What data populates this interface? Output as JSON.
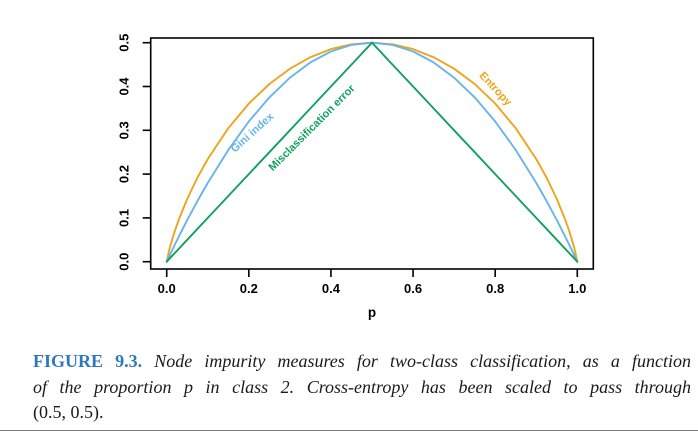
{
  "chart_data": {
    "type": "line",
    "title": "",
    "xlabel": "p",
    "ylabel": "",
    "xlim": [
      0,
      1
    ],
    "ylim": [
      0,
      0.5
    ],
    "grid": false,
    "legend": "labels drawn along curves",
    "x_ticks": {
      "values": [
        0.0,
        0.2,
        0.4,
        0.6,
        0.8,
        1.0
      ],
      "labels": [
        "0.0",
        "0.2",
        "0.4",
        "0.6",
        "0.8",
        "1.0"
      ]
    },
    "y_ticks": {
      "values": [
        0.0,
        0.1,
        0.2,
        0.3,
        0.4,
        0.5
      ],
      "labels": [
        "0.0",
        "0.1",
        "0.2",
        "0.3",
        "0.4",
        "0.5"
      ]
    },
    "x": [
      0,
      0.005,
      0.01,
      0.02,
      0.03,
      0.05,
      0.075,
      0.1,
      0.15,
      0.2,
      0.25,
      0.3,
      0.35,
      0.4,
      0.45,
      0.5,
      0.55,
      0.6,
      0.65,
      0.7,
      0.75,
      0.8,
      0.85,
      0.9,
      0.925,
      0.95,
      0.97,
      0.98,
      0.99,
      0.995,
      1.0
    ],
    "series": [
      {
        "id": "entropy",
        "name": "Entropy",
        "color": "#EDA51E",
        "values": [
          0,
          0.0227,
          0.0404,
          0.0707,
          0.0972,
          0.1432,
          0.1922,
          0.2345,
          0.3049,
          0.361,
          0.4056,
          0.4406,
          0.467,
          0.4855,
          0.4964,
          0.5,
          0.4964,
          0.4855,
          0.467,
          0.4406,
          0.4056,
          0.361,
          0.3049,
          0.2345,
          0.1922,
          0.1432,
          0.0972,
          0.0707,
          0.0404,
          0.0227,
          0
        ]
      },
      {
        "id": "gini",
        "name": "Gini index",
        "color": "#67B5E9",
        "values": [
          0,
          0.00995,
          0.0198,
          0.0392,
          0.0582,
          0.095,
          0.1388,
          0.18,
          0.255,
          0.32,
          0.375,
          0.42,
          0.455,
          0.48,
          0.495,
          0.5,
          0.495,
          0.48,
          0.455,
          0.42,
          0.375,
          0.32,
          0.255,
          0.18,
          0.1388,
          0.095,
          0.0582,
          0.0392,
          0.0198,
          0.00995,
          0
        ]
      },
      {
        "id": "misclassification",
        "name": "Misclassification error",
        "color": "#12A15E",
        "values": [
          0,
          0.005,
          0.01,
          0.02,
          0.03,
          0.05,
          0.075,
          0.1,
          0.15,
          0.2,
          0.25,
          0.3,
          0.35,
          0.4,
          0.45,
          0.5,
          0.45,
          0.4,
          0.35,
          0.3,
          0.25,
          0.2,
          0.15,
          0.1,
          0.075,
          0.05,
          0.03,
          0.02,
          0.01,
          0.005,
          0
        ]
      }
    ],
    "annotations": [
      {
        "id": "gini",
        "text": "Gini index",
        "color": "#67B5E9",
        "p": 0.209,
        "value": 0.294,
        "rotation": -42
      },
      {
        "id": "misclassification",
        "text": "Misclassification error",
        "color": "#12A15E",
        "p": 0.354,
        "value": 0.305,
        "rotation": -45
      },
      {
        "id": "entropy",
        "text": "Entropy",
        "color": "#EDA51E",
        "p": 0.8,
        "value": 0.394,
        "rotation": 47
      }
    ]
  },
  "caption": {
    "label": "FIGURE 9.3.",
    "label_color": "#2E78BE",
    "line1": "Node impurity measures for two-class classification, as a function",
    "line2": "of the proportion p in class 2. Cross-entropy has been scaled to pass through",
    "line3": "(0.5, 0.5)."
  }
}
